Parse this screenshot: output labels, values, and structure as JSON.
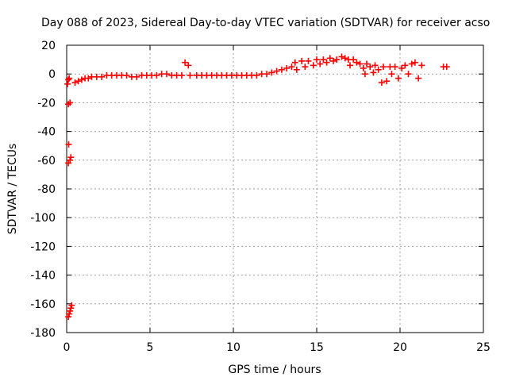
{
  "chart_data": {
    "type": "scatter",
    "title": "Day 088 of 2023, Sidereal Day-to-day VTEC variation (SDTVAR) for receiver acso",
    "xlabel": "GPS time / hours",
    "ylabel": "SDTVAR / TECUs",
    "xlim": [
      0,
      25
    ],
    "ylim": [
      -180,
      20
    ],
    "xticks": [
      0,
      5,
      10,
      15,
      20,
      25
    ],
    "xtick_labels": [
      "0",
      "5",
      "10",
      "15",
      "20",
      "25"
    ],
    "yticks": [
      20,
      0,
      -20,
      -40,
      -60,
      -80,
      -100,
      -120,
      -140,
      -160,
      -180
    ],
    "ytick_labels": [
      "20",
      "0",
      "-20",
      "-40",
      "-60",
      "-80",
      "-100",
      "-120",
      "-140",
      "-160",
      "-180"
    ],
    "grid": true,
    "marker": "cross",
    "series": [
      {
        "name": "SDTVAR",
        "color": "#ff0000",
        "points": [
          [
            0.05,
            -7
          ],
          [
            0.1,
            -4
          ],
          [
            0.15,
            -3
          ],
          [
            0.1,
            -21
          ],
          [
            0.2,
            -20
          ],
          [
            0.12,
            -49
          ],
          [
            0.1,
            -62
          ],
          [
            0.2,
            -60
          ],
          [
            0.25,
            -58
          ],
          [
            0.1,
            -169
          ],
          [
            0.15,
            -167
          ],
          [
            0.2,
            -165
          ],
          [
            0.25,
            -163
          ],
          [
            0.3,
            -161
          ],
          [
            0.5,
            -6
          ],
          [
            0.7,
            -5
          ],
          [
            0.9,
            -4
          ],
          [
            1.1,
            -3
          ],
          [
            1.3,
            -3
          ],
          [
            1.5,
            -2
          ],
          [
            1.8,
            -2
          ],
          [
            2.1,
            -2
          ],
          [
            2.4,
            -1
          ],
          [
            2.7,
            -1
          ],
          [
            3.0,
            -1
          ],
          [
            3.3,
            -1
          ],
          [
            3.6,
            -1
          ],
          [
            3.9,
            -2
          ],
          [
            4.2,
            -2
          ],
          [
            4.5,
            -1
          ],
          [
            4.8,
            -1
          ],
          [
            5.1,
            -1
          ],
          [
            5.4,
            -1
          ],
          [
            5.7,
            0
          ],
          [
            6.0,
            0
          ],
          [
            6.3,
            -1
          ],
          [
            6.6,
            -1
          ],
          [
            6.9,
            -1
          ],
          [
            7.1,
            8
          ],
          [
            7.3,
            6
          ],
          [
            7.4,
            -1
          ],
          [
            7.8,
            -1
          ],
          [
            8.1,
            -1
          ],
          [
            8.4,
            -1
          ],
          [
            8.7,
            -1
          ],
          [
            9.0,
            -1
          ],
          [
            9.3,
            -1
          ],
          [
            9.6,
            -1
          ],
          [
            9.9,
            -1
          ],
          [
            10.2,
            -1
          ],
          [
            10.5,
            -1
          ],
          [
            10.8,
            -1
          ],
          [
            11.1,
            -1
          ],
          [
            11.4,
            -1
          ],
          [
            11.7,
            0
          ],
          [
            12.0,
            0
          ],
          [
            12.3,
            1
          ],
          [
            12.6,
            2
          ],
          [
            12.9,
            3
          ],
          [
            13.2,
            4
          ],
          [
            13.5,
            5
          ],
          [
            13.7,
            8
          ],
          [
            13.8,
            3
          ],
          [
            14.1,
            9
          ],
          [
            14.3,
            5
          ],
          [
            14.5,
            9
          ],
          [
            14.8,
            6
          ],
          [
            15.0,
            10
          ],
          [
            15.2,
            7
          ],
          [
            15.4,
            10
          ],
          [
            15.6,
            8
          ],
          [
            15.8,
            11
          ],
          [
            16.0,
            9
          ],
          [
            16.2,
            10
          ],
          [
            16.5,
            12
          ],
          [
            16.7,
            11
          ],
          [
            16.9,
            10
          ],
          [
            17.0,
            6
          ],
          [
            17.2,
            10
          ],
          [
            17.4,
            8
          ],
          [
            17.6,
            7
          ],
          [
            17.8,
            4
          ],
          [
            17.9,
            0
          ],
          [
            18.0,
            7
          ],
          [
            18.2,
            5
          ],
          [
            18.4,
            1
          ],
          [
            18.5,
            6
          ],
          [
            18.7,
            3
          ],
          [
            18.9,
            -6
          ],
          [
            19.0,
            5
          ],
          [
            19.2,
            -5
          ],
          [
            19.4,
            5
          ],
          [
            19.5,
            0
          ],
          [
            19.7,
            5
          ],
          [
            19.9,
            -3
          ],
          [
            20.1,
            4
          ],
          [
            20.3,
            6
          ],
          [
            20.5,
            0
          ],
          [
            20.7,
            7
          ],
          [
            20.9,
            8
          ],
          [
            21.1,
            -3
          ],
          [
            21.3,
            6
          ],
          [
            22.6,
            5
          ],
          [
            22.8,
            5
          ]
        ]
      }
    ]
  }
}
